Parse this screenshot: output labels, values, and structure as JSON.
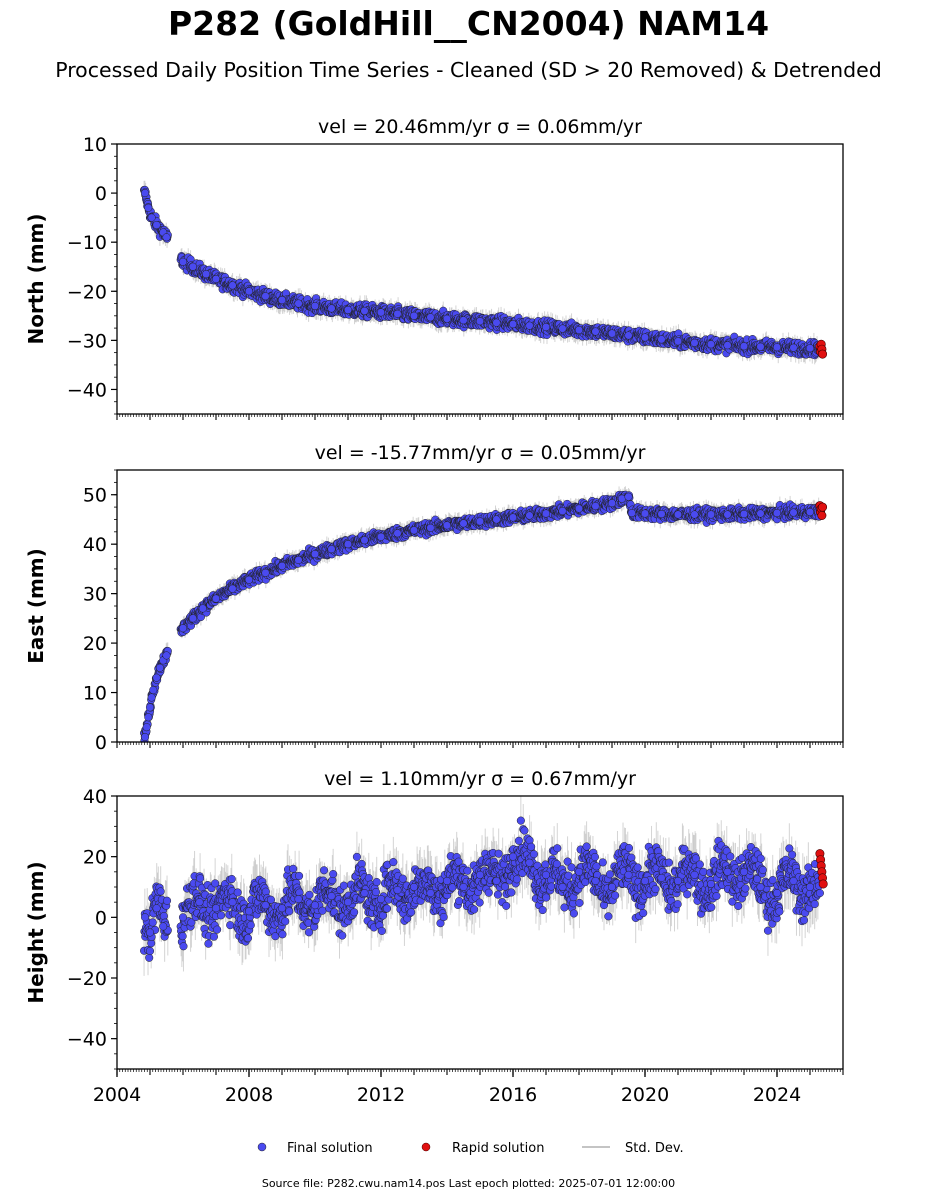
{
  "title": "P282 (GoldHill__CN2004) NAM14",
  "subtitle": "Processed Daily Position Time Series - Cleaned (SD > 20 Removed) & Detrended",
  "footer": "Source file: P282.cwu.nam14.pos  Last epoch plotted: 2025-07-01 12:00:00",
  "colors": {
    "final": "#4a4af0",
    "rapid": "#e01010",
    "std": "#b0b0b0"
  },
  "chart_data": [
    {
      "type": "scatter",
      "title": "vel = 20.46mm/yr   σ = 0.06mm/yr",
      "ylabel": "North (mm)",
      "xlim": [
        2004.0,
        2026.0
      ],
      "ylim": [
        -45,
        10
      ],
      "yticks": [
        10,
        0,
        -10,
        -20,
        -30,
        -40
      ],
      "series": [
        {
          "name": "Final solution",
          "x": [
            2004.85,
            2004.95,
            2005.05,
            2005.2,
            2005.4,
            2005.5,
            2006.0,
            2006.3,
            2006.7,
            2007.0,
            2007.5,
            2008.0,
            2008.5,
            2009.0,
            2009.5,
            2010.0,
            2010.5,
            2011.0,
            2011.5,
            2012.0,
            2012.5,
            2013.0,
            2013.5,
            2014.0,
            2014.5,
            2015.0,
            2015.5,
            2016.0,
            2016.5,
            2017.0,
            2017.5,
            2018.0,
            2018.5,
            2019.0,
            2019.5,
            2020.0,
            2020.5,
            2021.0,
            2021.5,
            2022.0,
            2022.5,
            2023.0,
            2023.5,
            2024.0,
            2024.5,
            2025.0,
            2025.3
          ],
          "y": [
            0,
            -3,
            -5,
            -6.5,
            -8,
            -9,
            -14,
            -15,
            -16.5,
            -17.5,
            -18.8,
            -20,
            -21,
            -21.8,
            -22.5,
            -23,
            -23.5,
            -23.8,
            -24,
            -24.3,
            -24.6,
            -25,
            -25.3,
            -25.6,
            -25.9,
            -26.1,
            -26.4,
            -26.7,
            -27,
            -27.3,
            -27.6,
            -27.9,
            -28.2,
            -28.6,
            -29,
            -29.4,
            -29.8,
            -30.2,
            -30.5,
            -30.8,
            -31,
            -31.2,
            -31.3,
            -31.4,
            -31.5,
            -31.6,
            -31.7
          ]
        },
        {
          "name": "Rapid solution",
          "x": [
            2025.3,
            2025.32,
            2025.34,
            2025.36,
            2025.38
          ],
          "y": [
            -31.2,
            -32.3,
            -30.8,
            -31.8,
            -32.8
          ]
        }
      ]
    },
    {
      "type": "scatter",
      "title": "vel = -15.77mm/yr   σ = 0.05mm/yr",
      "ylabel": "East (mm)",
      "xlim": [
        2004.0,
        2026.0
      ],
      "ylim": [
        0,
        55
      ],
      "yticks": [
        0,
        10,
        20,
        30,
        40,
        50
      ],
      "series": [
        {
          "name": "Final solution",
          "x": [
            2004.85,
            2004.9,
            2004.95,
            2005.0,
            2005.05,
            2005.1,
            2005.2,
            2005.3,
            2005.4,
            2005.5,
            2006.0,
            2006.3,
            2006.6,
            2007.0,
            2007.5,
            2008.0,
            2008.5,
            2009.0,
            2009.5,
            2010.0,
            2010.5,
            2011.0,
            2011.5,
            2012.0,
            2012.5,
            2013.0,
            2013.5,
            2014.0,
            2014.5,
            2015.0,
            2015.5,
            2016.0,
            2016.5,
            2017.0,
            2017.5,
            2018.0,
            2018.5,
            2019.0,
            2019.3,
            2019.5,
            2019.6,
            2020.0,
            2020.5,
            2021.0,
            2021.5,
            2022.0,
            2022.5,
            2023.0,
            2023.5,
            2024.0,
            2024.5,
            2025.0,
            2025.3
          ],
          "y": [
            1,
            3,
            5,
            7,
            9,
            10.5,
            13,
            15,
            16.5,
            17.5,
            23,
            25,
            27,
            29,
            31,
            32.8,
            34.2,
            35.6,
            36.8,
            38,
            39,
            40,
            40.8,
            41.5,
            42.2,
            42.8,
            43.3,
            43.8,
            44.2,
            44.6,
            45,
            45.4,
            45.8,
            46.2,
            46.7,
            47.2,
            47.7,
            48.3,
            49.2,
            49.6,
            46.3,
            46.2,
            46.1,
            46,
            46,
            46,
            46,
            46.1,
            46.2,
            46.3,
            46.4,
            46.5,
            46.6
          ]
        },
        {
          "name": "Rapid solution",
          "x": [
            2025.3,
            2025.32,
            2025.34,
            2025.36,
            2025.38
          ],
          "y": [
            47.8,
            46.5,
            47.2,
            45.8,
            47.5
          ]
        }
      ]
    },
    {
      "type": "scatter",
      "title": "vel = 1.10mm/yr   σ = 0.67mm/yr",
      "ylabel": "Height (mm)",
      "xlim": [
        2004.0,
        2026.0
      ],
      "ylim": [
        -50,
        40
      ],
      "yticks": [
        40,
        20,
        0,
        -20,
        -40
      ],
      "xticks": [
        2004,
        2008,
        2012,
        2016,
        2020,
        2024
      ],
      "xticklabels": [
        "2004",
        "2008",
        "2012",
        "2016",
        "2020",
        "2024"
      ],
      "series": [
        {
          "name": "Final solution",
          "x": [
            2004.85,
            2005.0,
            2005.2,
            2005.4,
            2006.0,
            2006.5,
            2007.0,
            2007.5,
            2008.0,
            2008.5,
            2009.0,
            2009.5,
            2010.0,
            2010.5,
            2011.0,
            2011.5,
            2012.0,
            2012.5,
            2013.0,
            2013.5,
            2014.0,
            2014.5,
            2015.0,
            2015.5,
            2016.0,
            2016.5,
            2017.0,
            2017.5,
            2018.0,
            2018.5,
            2019.0,
            2019.5,
            2020.0,
            2020.5,
            2021.0,
            2021.5,
            2022.0,
            2022.5,
            2023.0,
            2023.5,
            2024.0,
            2024.5,
            2025.0,
            2025.3
          ],
          "y": [
            0,
            -5,
            3,
            -3,
            0,
            5,
            3,
            5,
            2,
            4,
            3,
            6,
            4,
            7,
            5,
            8,
            6,
            9,
            10,
            8,
            12,
            10,
            14,
            12,
            20,
            18,
            14,
            10,
            15,
            12,
            10,
            14,
            12,
            13,
            12,
            14,
            11,
            15,
            15,
            10,
            8,
            12,
            10,
            8
          ]
        },
        {
          "name": "Rapid solution",
          "x": [
            2025.3,
            2025.32,
            2025.34,
            2025.36,
            2025.38,
            2025.4
          ],
          "y": [
            21,
            19,
            17,
            15,
            13,
            11
          ]
        }
      ]
    }
  ],
  "legend": {
    "placement": "bottom-center",
    "entries": [
      "Final solution",
      "Rapid solution",
      "Std. Dev."
    ]
  }
}
